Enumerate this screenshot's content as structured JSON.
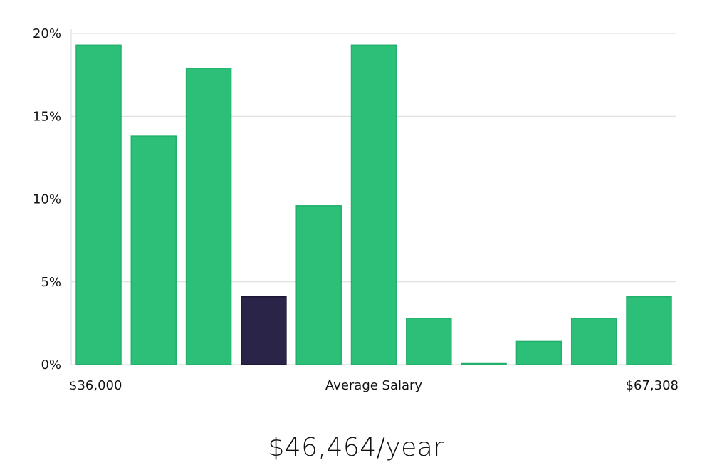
{
  "chart_data": {
    "type": "bar",
    "categories": [
      "1",
      "2",
      "3",
      "4",
      "5",
      "6",
      "7",
      "8",
      "9",
      "10",
      "11"
    ],
    "values": [
      19.3,
      13.8,
      17.9,
      4.1,
      9.6,
      19.3,
      2.8,
      0.05,
      1.4,
      2.8,
      4.1
    ],
    "highlight_index": 3,
    "ylim": [
      0,
      20
    ],
    "yticks": [
      0,
      5,
      10,
      15,
      20
    ],
    "ytick_labels": [
      "0%",
      "5%",
      "10%",
      "15%",
      "20%"
    ],
    "xlabel": "Average Salary",
    "x_min_label": "$36,000",
    "x_max_label": "$67,308",
    "grid": true,
    "colors": {
      "bar": "#2bbf78",
      "bar_stroke": "#22b06c",
      "highlight": "#2a2548",
      "grid": "#d9d9d9"
    }
  },
  "summary": {
    "salary": "$46,464/year"
  }
}
